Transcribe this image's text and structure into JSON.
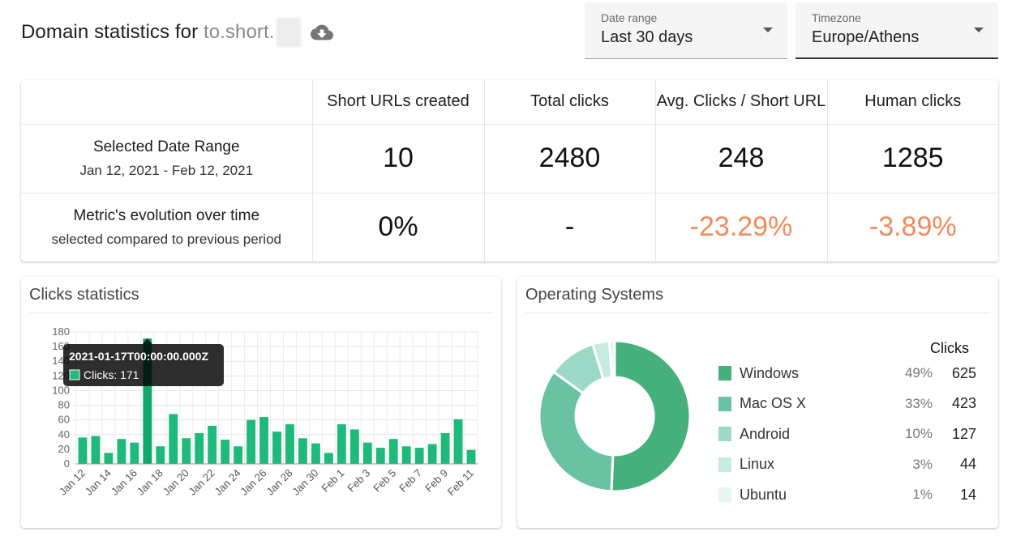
{
  "header": {
    "title_prefix": "Domain statistics for",
    "domain": "to.short.",
    "download_icon": "cloud-download-icon"
  },
  "filters": {
    "date_range": {
      "label": "Date range",
      "value": "Last 30 days"
    },
    "timezone": {
      "label": "Timezone",
      "value": "Europe/Athens"
    }
  },
  "stats_table": {
    "columns": [
      "Short URLs created",
      "Total clicks",
      "Avg. Clicks / Short URL",
      "Human clicks"
    ],
    "rows": [
      {
        "title": "Selected Date Range",
        "subtitle": "Jan 12, 2021 - Feb 12, 2021",
        "values": [
          "10",
          "2480",
          "248",
          "1285"
        ]
      },
      {
        "title": "Metric's evolution over time",
        "subtitle": "selected compared to previous period",
        "values": [
          "0%",
          "-",
          "-23.29%",
          "-3.89%"
        ]
      }
    ]
  },
  "clicks_card": {
    "title": "Clicks statistics",
    "tooltip": {
      "title": "2021-01-17T00:00:00.000Z",
      "label": "Clicks: 171"
    }
  },
  "os_card": {
    "title": "Operating Systems",
    "legend_header": "Clicks",
    "items": [
      {
        "name": "Windows",
        "pct": "49%",
        "value": "625",
        "color": "#45b07c"
      },
      {
        "name": "Mac OS X",
        "pct": "33%",
        "value": "423",
        "color": "#69c2a2"
      },
      {
        "name": "Android",
        "pct": "10%",
        "value": "127",
        "color": "#9dd9c7"
      },
      {
        "name": "Linux",
        "pct": "3%",
        "value": "44",
        "color": "#c8ebe1"
      },
      {
        "name": "Ubuntu",
        "pct": "1%",
        "value": "14",
        "color": "#e6f7f0"
      }
    ]
  },
  "chart_data": {
    "type": "bar",
    "title": "",
    "xlabel": "",
    "ylabel": "",
    "ylim": [
      0,
      180
    ],
    "yticks": [
      0,
      20,
      40,
      60,
      80,
      100,
      120,
      140,
      160,
      180
    ],
    "grid": true,
    "categories": [
      "Jan 12",
      "Jan 13",
      "Jan 14",
      "Jan 15",
      "Jan 16",
      "Jan 17",
      "Jan 18",
      "Jan 19",
      "Jan 20",
      "Jan 21",
      "Jan 22",
      "Jan 23",
      "Jan 24",
      "Jan 25",
      "Jan 26",
      "Jan 27",
      "Jan 28",
      "Jan 29",
      "Jan 30",
      "Jan 31",
      "Feb 1",
      "Feb 2",
      "Feb 3",
      "Feb 4",
      "Feb 5",
      "Feb 6",
      "Feb 7",
      "Feb 8",
      "Feb 9",
      "Feb 10",
      "Feb 11"
    ],
    "x_tick_labels": [
      "Jan 12",
      "Jan 14",
      "Jan 16",
      "Jan 18",
      "Jan 20",
      "Jan 22",
      "Jan 24",
      "Jan 26",
      "Jan 28",
      "Jan 30",
      "Feb 1",
      "Feb 3",
      "Feb 5",
      "Feb 7",
      "Feb 9",
      "Feb 11"
    ],
    "series": [
      {
        "name": "Clicks",
        "color": "#1dba7b",
        "highlight_color": "#10a86c",
        "values": [
          36,
          38,
          15,
          34,
          29,
          171,
          24,
          68,
          35,
          42,
          52,
          33,
          24,
          60,
          64,
          44,
          54,
          35,
          28,
          15,
          54,
          47,
          29,
          22,
          34,
          24,
          22,
          27,
          42,
          61,
          19
        ]
      }
    ],
    "highlight_index": 5
  }
}
